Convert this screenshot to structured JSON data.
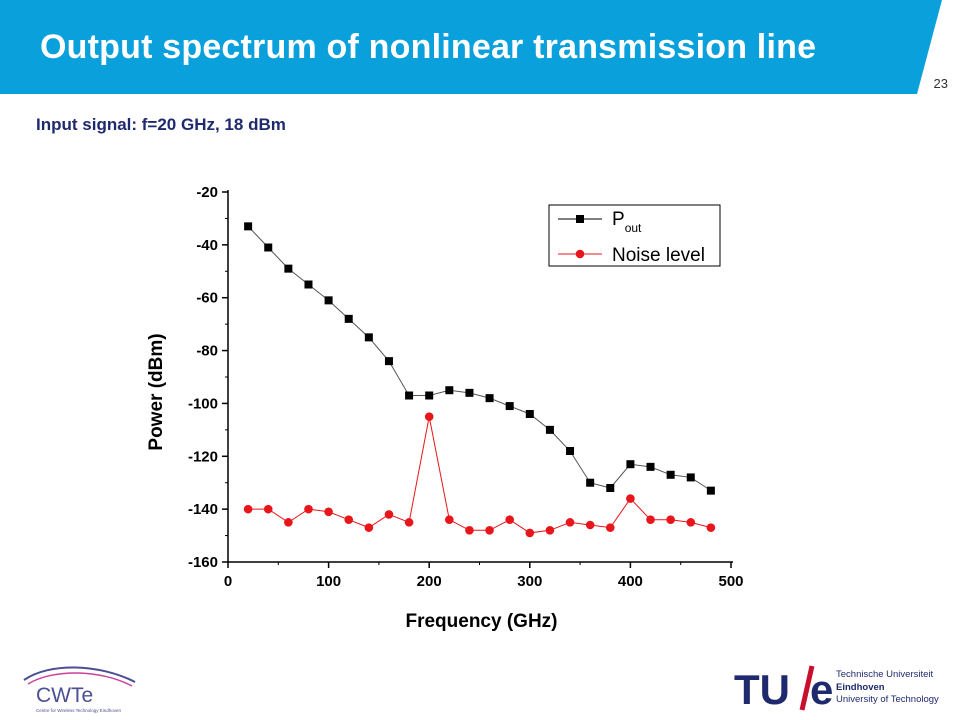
{
  "slide": {
    "title": "Output spectrum of nonlinear transmission line",
    "page_number": "23",
    "subtitle": "Input signal: f=20 GHz, 18 dBm"
  },
  "colors": {
    "header_blue": "#0aa0dc",
    "subtitle_navy": "#1f2a6e",
    "series_black": "#000000",
    "series_red": "#e8151b",
    "cwte_purple": "#4a4f93",
    "tue_red": "#c8102e"
  },
  "chart_data": {
    "type": "line",
    "xlabel": "Frequency (GHz)",
    "ylabel": "Power (dBm)",
    "xlim": [
      0,
      500
    ],
    "ylim": [
      -160,
      -20
    ],
    "xticks": [
      "0",
      "100",
      "200",
      "300",
      "400",
      "500"
    ],
    "yticks": [
      "-20",
      "-40",
      "-60",
      "-80",
      "-100",
      "-120",
      "-140",
      "-160"
    ],
    "grid": false,
    "legend_position": "top-right",
    "series": [
      {
        "name": "P",
        "name_subscript": "out",
        "marker": "square",
        "color": "#000000",
        "points": [
          [
            20,
            -33
          ],
          [
            40,
            -41
          ],
          [
            60,
            -49
          ],
          [
            80,
            -55
          ],
          [
            100,
            -61
          ],
          [
            120,
            -68
          ],
          [
            140,
            -75
          ],
          [
            160,
            -84
          ],
          [
            180,
            -97
          ],
          [
            200,
            -97
          ],
          [
            220,
            -95
          ],
          [
            240,
            -96
          ],
          [
            260,
            -98
          ],
          [
            280,
            -101
          ],
          [
            300,
            -104
          ],
          [
            320,
            -110
          ],
          [
            340,
            -118
          ],
          [
            360,
            -130
          ],
          [
            380,
            -132
          ],
          [
            400,
            -123
          ],
          [
            420,
            -124
          ],
          [
            440,
            -127
          ],
          [
            460,
            -128
          ],
          [
            480,
            -133
          ]
        ]
      },
      {
        "name": "Noise level",
        "marker": "circle",
        "color": "#e8151b",
        "points": [
          [
            20,
            -140
          ],
          [
            40,
            -140
          ],
          [
            60,
            -145
          ],
          [
            80,
            -140
          ],
          [
            100,
            -141
          ],
          [
            120,
            -144
          ],
          [
            140,
            -147
          ],
          [
            160,
            -142
          ],
          [
            180,
            -145
          ],
          [
            200,
            -105
          ],
          [
            220,
            -144
          ],
          [
            240,
            -148
          ],
          [
            260,
            -148
          ],
          [
            280,
            -144
          ],
          [
            300,
            -149
          ],
          [
            320,
            -148
          ],
          [
            340,
            -145
          ],
          [
            360,
            -146
          ],
          [
            380,
            -147
          ],
          [
            400,
            -136
          ],
          [
            420,
            -144
          ],
          [
            440,
            -144
          ],
          [
            460,
            -145
          ],
          [
            480,
            -147
          ]
        ]
      }
    ]
  },
  "logos": {
    "cwte_name": "CWTe",
    "cwte_tagline": "Centre for Wireless Technology Eindhoven",
    "tue_mark": "TU/e",
    "tue_lines": [
      "Technische Universiteit",
      "Eindhoven",
      "University of Technology"
    ]
  }
}
